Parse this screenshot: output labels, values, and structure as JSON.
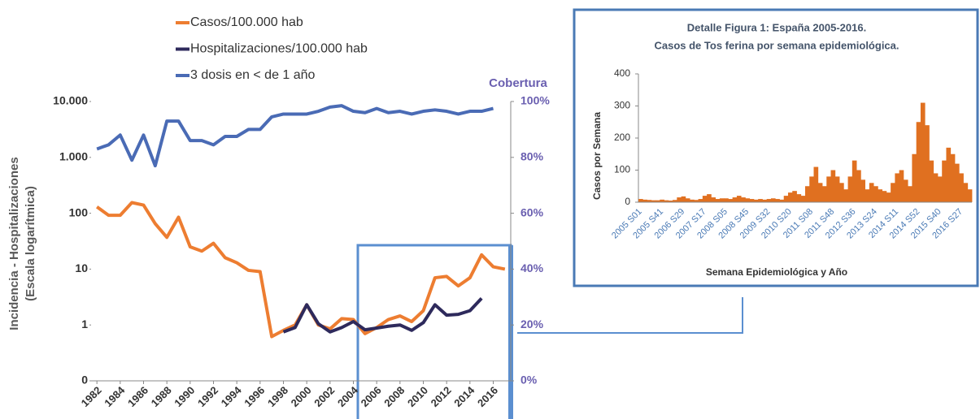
{
  "chart_data": [
    {
      "type": "line",
      "legend": "top",
      "ylabel": [
        "Incidencia - Hospitalizaciones",
        "(Escala logarítmica)"
      ],
      "y2label": "Cobertura",
      "log_y": true,
      "x": [
        1982,
        1983,
        1984,
        1985,
        1986,
        1987,
        1988,
        1989,
        1990,
        1991,
        1992,
        1993,
        1994,
        1995,
        1996,
        1997,
        1998,
        1999,
        2000,
        2001,
        2002,
        2003,
        2004,
        2005,
        2006,
        2007,
        2008,
        2009,
        2010,
        2011,
        2012,
        2013,
        2014,
        2015,
        2016,
        2017
      ],
      "xlim": [
        1981.5,
        2017.5
      ],
      "xticks": [
        1982,
        1984,
        1986,
        1988,
        1990,
        1992,
        1994,
        1996,
        1998,
        2000,
        2002,
        2004,
        2006,
        2008,
        2010,
        2012,
        2014,
        2016
      ],
      "ylim": [
        0.1,
        10000
      ],
      "yticks": [
        {
          "value": 0.1,
          "label": "0"
        },
        1,
        10,
        100,
        {
          "value": 1000,
          "label": "1.000"
        },
        {
          "value": 10000,
          "label": "10.000"
        }
      ],
      "y2lim": [
        0,
        100
      ],
      "y2ticks": [
        {
          "value": 0,
          "label": "0%"
        },
        {
          "value": 20,
          "label": "20%"
        },
        {
          "value": 40,
          "label": "40%"
        },
        {
          "value": 60,
          "label": "60%"
        },
        {
          "value": 80,
          "label": "80%"
        },
        {
          "value": 100,
          "label": "100%"
        }
      ],
      "series": [
        {
          "name": "Casos/100.000 hab",
          "color": "#ed7d31",
          "values": [
            130,
            92,
            92,
            155,
            140,
            65,
            37,
            85,
            25,
            21,
            29,
            16,
            13,
            9.5,
            9,
            0.62,
            0.8,
            1.0,
            2.3,
            1.0,
            0.85,
            1.3,
            1.25,
            0.7,
            0.9,
            1.25,
            1.45,
            1.15,
            1.8,
            7,
            7.4,
            5,
            7,
            18,
            11,
            10
          ]
        },
        {
          "name": "Hospitalizaciones/100.000 hab",
          "color": "#2e2a5c",
          "values": [
            null,
            null,
            null,
            null,
            null,
            null,
            null,
            null,
            null,
            null,
            null,
            null,
            null,
            null,
            null,
            null,
            0.75,
            0.9,
            2.3,
            1.05,
            0.75,
            0.9,
            1.15,
            0.82,
            0.88,
            0.95,
            1.0,
            0.8,
            1.1,
            2.3,
            1.5,
            1.55,
            1.8,
            3.0,
            null,
            null
          ]
        },
        {
          "name": "3 dosis en < de 1 año",
          "color": "#4a6bb5",
          "axis": "y2",
          "values": [
            83,
            84.5,
            88,
            79,
            88,
            77,
            93,
            93,
            86,
            86,
            84.5,
            87.5,
            87.5,
            90,
            90,
            94.5,
            95.5,
            95.5,
            95.5,
            96.5,
            98,
            98.5,
            96.5,
            96,
            97.5,
            96,
            96.5,
            95.5,
            96.5,
            97,
            96.5,
            95.5,
            96.5,
            96.5,
            97.5,
            null
          ]
        }
      ]
    },
    {
      "type": "bar",
      "title": "Detalle Figura 1: España 2005-2016.",
      "subtitle": "Casos de Tos ferina por semana epidemiológica.",
      "ylabel": "Casos por Semana",
      "xlabel": "Semana Epidemiológica y Año",
      "color": "#e07020",
      "ylim": [
        0,
        400
      ],
      "yticks": [
        0,
        100,
        200,
        300,
        400
      ],
      "categories": [
        "2005 S01",
        null,
        null,
        null,
        null,
        "2005 S41",
        null,
        null,
        null,
        null,
        "2006 S29",
        null,
        null,
        null,
        null,
        "2007 S17",
        null,
        null,
        null,
        null,
        "2008 S05",
        null,
        null,
        null,
        null,
        "2008 S45",
        null,
        null,
        null,
        null,
        "2009 S32",
        null,
        null,
        null,
        null,
        "2010 S20",
        null,
        null,
        null,
        null,
        "2011 S08",
        null,
        null,
        null,
        null,
        "2011 S48",
        null,
        null,
        null,
        null,
        "2012 S36",
        null,
        null,
        null,
        null,
        "2013 S24",
        null,
        null,
        null,
        null,
        "2014 S11",
        null,
        null,
        null,
        null,
        "2014 S52",
        null,
        null,
        null,
        null,
        "2015 S40",
        null,
        null,
        null,
        null,
        "2016 S27",
        null,
        null
      ],
      "values": [
        10,
        8,
        7,
        6,
        6,
        8,
        6,
        5,
        7,
        15,
        18,
        12,
        8,
        7,
        10,
        20,
        25,
        15,
        10,
        12,
        12,
        10,
        15,
        20,
        15,
        12,
        10,
        8,
        10,
        8,
        10,
        12,
        10,
        8,
        20,
        30,
        35,
        25,
        20,
        50,
        80,
        110,
        60,
        50,
        80,
        100,
        80,
        60,
        40,
        80,
        130,
        100,
        70,
        40,
        60,
        50,
        40,
        35,
        30,
        60,
        90,
        100,
        70,
        50,
        150,
        250,
        310,
        240,
        130,
        90,
        80,
        130,
        170,
        150,
        120,
        90,
        60,
        40
      ]
    }
  ]
}
